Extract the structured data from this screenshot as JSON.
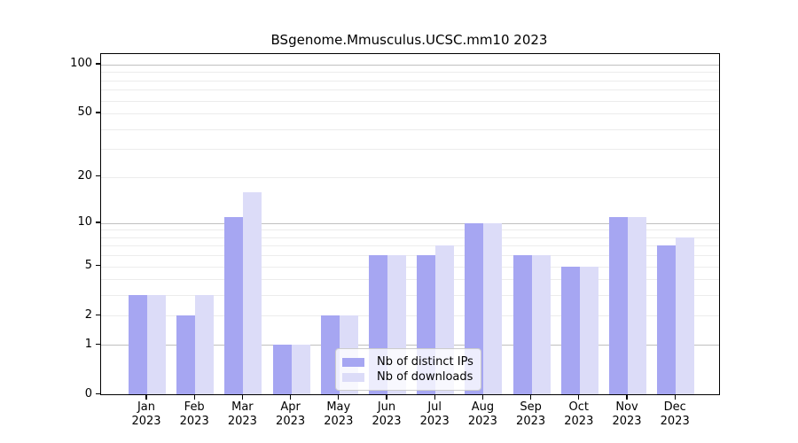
{
  "title": "BSgenome.Mmusculus.UCSC.mm10 2023",
  "colors": {
    "distinct_ips": "#a6a6f2",
    "downloads": "#dcdcf8",
    "major_gridline": "#c0c0c0",
    "minor_gridline": "#ececec",
    "axis": "#000000",
    "legend_border": "#cccccc",
    "background": "#ffffff"
  },
  "legend": {
    "items": [
      {
        "label": "Nb of distinct IPs",
        "color_key": "distinct_ips"
      },
      {
        "label": "Nb of downloads",
        "color_key": "downloads"
      }
    ]
  },
  "y_axis": {
    "scale": "log1p",
    "tick_values": [
      0,
      1,
      2,
      5,
      10,
      20,
      50,
      100
    ],
    "tick_labels": [
      "0",
      "1",
      "2",
      "5",
      "10",
      "20",
      "50",
      "100"
    ],
    "major_gridline_values": [
      1,
      10,
      100
    ],
    "minor_gridline_values": [
      2,
      3,
      4,
      5,
      6,
      7,
      8,
      9,
      20,
      30,
      40,
      50,
      60,
      70,
      80,
      90
    ]
  },
  "x_axis": {
    "months": [
      "Jan",
      "Feb",
      "Mar",
      "Apr",
      "May",
      "Jun",
      "Jul",
      "Aug",
      "Sep",
      "Oct",
      "Nov",
      "Dec"
    ],
    "year": "2023"
  },
  "chart_data": {
    "type": "bar",
    "title": "BSgenome.Mmusculus.UCSC.mm10 2023",
    "categories": [
      "Jan 2023",
      "Feb 2023",
      "Mar 2023",
      "Apr 2023",
      "May 2023",
      "Jun 2023",
      "Jul 2023",
      "Aug 2023",
      "Sep 2023",
      "Oct 2023",
      "Nov 2023",
      "Dec 2023"
    ],
    "series": [
      {
        "name": "Nb of distinct IPs",
        "color_key": "distinct_ips",
        "values": [
          3,
          2,
          11,
          1,
          2,
          6,
          6,
          10,
          6,
          5,
          11,
          7
        ]
      },
      {
        "name": "Nb of downloads",
        "color_key": "downloads",
        "values": [
          3,
          3,
          16,
          1,
          2,
          6,
          7,
          10,
          6,
          5,
          11,
          8
        ]
      }
    ],
    "yscale": "log1p",
    "ylim": [
      0,
      116
    ],
    "ytick_labels": [
      "0",
      "1",
      "2",
      "5",
      "10",
      "20",
      "50",
      "100"
    ],
    "grid": true,
    "legend_position": "lower center"
  }
}
